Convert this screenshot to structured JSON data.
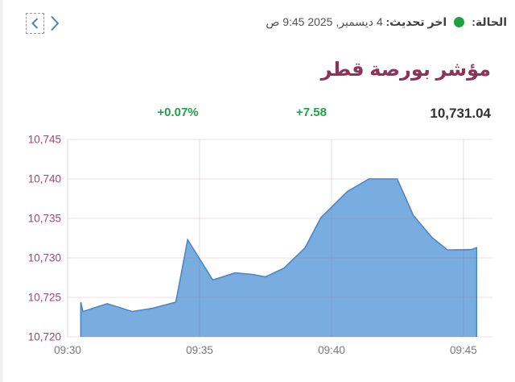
{
  "header": {
    "nav": {
      "prev_label": "previous",
      "next_label": "next"
    },
    "status": {
      "label": "الحالة:",
      "dot_color": "#21a13e",
      "updated_bold": "اخر تحديث:",
      "updated_value": "4 ديسمبر, 2025 9:45 ص"
    }
  },
  "title": "مؤشر بورصة قطر",
  "stats": {
    "last_value": "10,731.04",
    "change_value": "+7.58",
    "change_percent": "+0.07%",
    "positive_color": "#21a24b"
  },
  "chart_data": {
    "type": "area",
    "title": "مؤشر بورصة قطر",
    "xlabel": "",
    "ylabel": "",
    "x_unit": "minutes after 09:30",
    "xlim": [
      0,
      16.1
    ],
    "ylim": [
      10720,
      10745
    ],
    "grid": true,
    "legend": false,
    "x_ticks": [
      {
        "t": 0,
        "label": "09:30"
      },
      {
        "t": 5,
        "label": "09:35"
      },
      {
        "t": 10,
        "label": "09:40"
      },
      {
        "t": 15,
        "label": "09:45"
      }
    ],
    "y_ticks": [
      {
        "v": 10720,
        "label": "10,720"
      },
      {
        "v": 10725,
        "label": "10,725"
      },
      {
        "v": 10730,
        "label": "10,730"
      },
      {
        "v": 10735,
        "label": "10,735"
      },
      {
        "v": 10740,
        "label": "10,740"
      },
      {
        "v": 10745,
        "label": "10,745"
      }
    ],
    "series": [
      {
        "name": "مؤشر بورصة قطر",
        "points": [
          [
            0.5,
            10724.4
          ],
          [
            0.58,
            10723.2
          ],
          [
            1.5,
            10724.2
          ],
          [
            2.45,
            10723.2
          ],
          [
            3.2,
            10723.6
          ],
          [
            4.1,
            10724.4
          ],
          [
            4.55,
            10732.3
          ],
          [
            5.5,
            10727.2
          ],
          [
            6.35,
            10728.1
          ],
          [
            7.0,
            10727.9
          ],
          [
            7.5,
            10727.6
          ],
          [
            8.2,
            10728.7
          ],
          [
            9.0,
            10731.3
          ],
          [
            9.6,
            10735.1
          ],
          [
            10.6,
            10738.4
          ],
          [
            11.42,
            10740.0
          ],
          [
            12.49,
            10740.0
          ],
          [
            13.1,
            10735.4
          ],
          [
            13.8,
            10732.6
          ],
          [
            14.4,
            10731.0
          ],
          [
            15.3,
            10731.05
          ],
          [
            15.5,
            10731.3
          ]
        ]
      }
    ],
    "line_color": "#4d87c7",
    "fill_color": "#79acdf",
    "grid_color_horizontal": "rgba(170,110,130,0.22)",
    "grid_color_vertical": "rgba(110,120,140,0.22)",
    "axis_line_color": "#d9d9dd",
    "y_tick_color": "#9c4a70",
    "x_tick_color": "#7a7b7e"
  }
}
